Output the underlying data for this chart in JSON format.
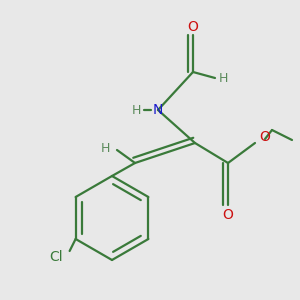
{
  "background_color": "#e8e8e8",
  "colors": {
    "C": "#3a7a3a",
    "H": "#5a8a5a",
    "N": "#1a1acc",
    "O": "#cc1111",
    "Cl": "#3a7a3a",
    "bond": "#3a7a3a"
  },
  "figsize": [
    3.0,
    3.0
  ],
  "dpi": 100
}
